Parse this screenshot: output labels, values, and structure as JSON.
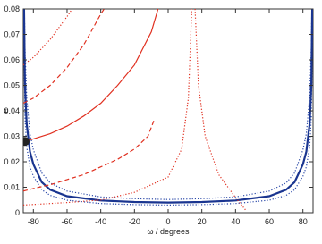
{
  "chart_data": {
    "type": "line",
    "xlabel": "ω / degrees",
    "ylabel": "e",
    "xlim": [
      -86,
      86
    ],
    "ylim": [
      0,
      0.08
    ],
    "xticks": [
      -80,
      -60,
      -40,
      -20,
      0,
      20,
      40,
      60,
      80
    ],
    "yticks": [
      0,
      0.01,
      0.02,
      0.03,
      0.04,
      0.05,
      0.06,
      0.07,
      0.08
    ],
    "series": [
      {
        "color": "#2a48a8",
        "style": "dotted",
        "x": [
          -85.3,
          -85,
          -84,
          -82,
          -80,
          -75,
          -70,
          -60,
          -40,
          -20,
          0,
          20,
          40,
          60,
          70,
          75,
          80,
          82,
          84,
          85,
          85.3
        ],
        "values": [
          0.08,
          0.065,
          0.0455,
          0.031,
          0.0247,
          0.0156,
          0.0117,
          0.0085,
          0.0062,
          0.0055,
          0.0052,
          0.0055,
          0.0062,
          0.0085,
          0.0117,
          0.0156,
          0.0247,
          0.031,
          0.0455,
          0.065,
          0.08
        ]
      },
      {
        "color": "#2a48a8",
        "style": "dotted",
        "x": [
          -85.8,
          -85,
          -84,
          -82,
          -80,
          -75,
          -70,
          -60,
          -40,
          -20,
          0,
          20,
          40,
          60,
          70,
          75,
          80,
          82,
          84,
          85,
          85.8
        ],
        "values": [
          0.08,
          0.0375,
          0.026,
          0.018,
          0.0143,
          0.009,
          0.0068,
          0.0049,
          0.0036,
          0.0032,
          0.003,
          0.0032,
          0.0036,
          0.0049,
          0.0068,
          0.009,
          0.0143,
          0.018,
          0.026,
          0.0375,
          0.08
        ]
      },
      {
        "color": "#1a3590",
        "style": "solid",
        "x": [
          -85.5,
          -85,
          -84,
          -82,
          -80,
          -75,
          -70,
          -60,
          -40,
          -20,
          0,
          20,
          40,
          60,
          70,
          75,
          80,
          82,
          84,
          85,
          85.5
        ],
        "values": [
          0.08,
          0.05,
          0.035,
          0.024,
          0.019,
          0.012,
          0.009,
          0.0065,
          0.0048,
          0.0042,
          0.004,
          0.0042,
          0.0048,
          0.0065,
          0.009,
          0.012,
          0.019,
          0.024,
          0.035,
          0.05,
          0.08
        ]
      },
      {
        "color": "#e03020",
        "style": "solid",
        "x": [
          -85,
          -80,
          -70,
          -60,
          -50,
          -40,
          -30,
          -20,
          -10,
          -6
        ],
        "values": [
          0.028,
          0.029,
          0.031,
          0.034,
          0.038,
          0.043,
          0.05,
          0.058,
          0.071,
          0.08
        ]
      },
      {
        "color": "#e03020",
        "style": "dashed",
        "x": [
          -86,
          -80,
          -70,
          -60,
          -50,
          -40,
          -38
        ],
        "values": [
          0.043,
          0.045,
          0.05,
          0.057,
          0.066,
          0.078,
          0.08
        ]
      },
      {
        "color": "#e03020",
        "style": "dotted",
        "x": [
          -86,
          -80,
          -70,
          -60,
          -57
        ],
        "values": [
          0.058,
          0.061,
          0.068,
          0.077,
          0.08
        ]
      },
      {
        "color": "#e03020",
        "style": "dashed",
        "x": [
          -86,
          -80,
          -70,
          -60,
          -50,
          -40,
          -30,
          -20,
          -12,
          -8
        ],
        "values": [
          0.0085,
          0.0095,
          0.011,
          0.013,
          0.015,
          0.018,
          0.021,
          0.025,
          0.03,
          0.037
        ]
      },
      {
        "color": "#e03020",
        "style": "dotted",
        "x": [
          -86,
          -60,
          -40,
          -20,
          0,
          8,
          12,
          14,
          15,
          16,
          18,
          22,
          30,
          40,
          46
        ],
        "values": [
          0.003,
          0.004,
          0.005,
          0.008,
          0.014,
          0.025,
          0.045,
          0.08,
          null,
          0.08,
          0.05,
          0.03,
          0.015,
          0.006,
          0.001
        ]
      }
    ],
    "point": {
      "x": -85,
      "value": 0.028,
      "color": "#222222"
    }
  }
}
